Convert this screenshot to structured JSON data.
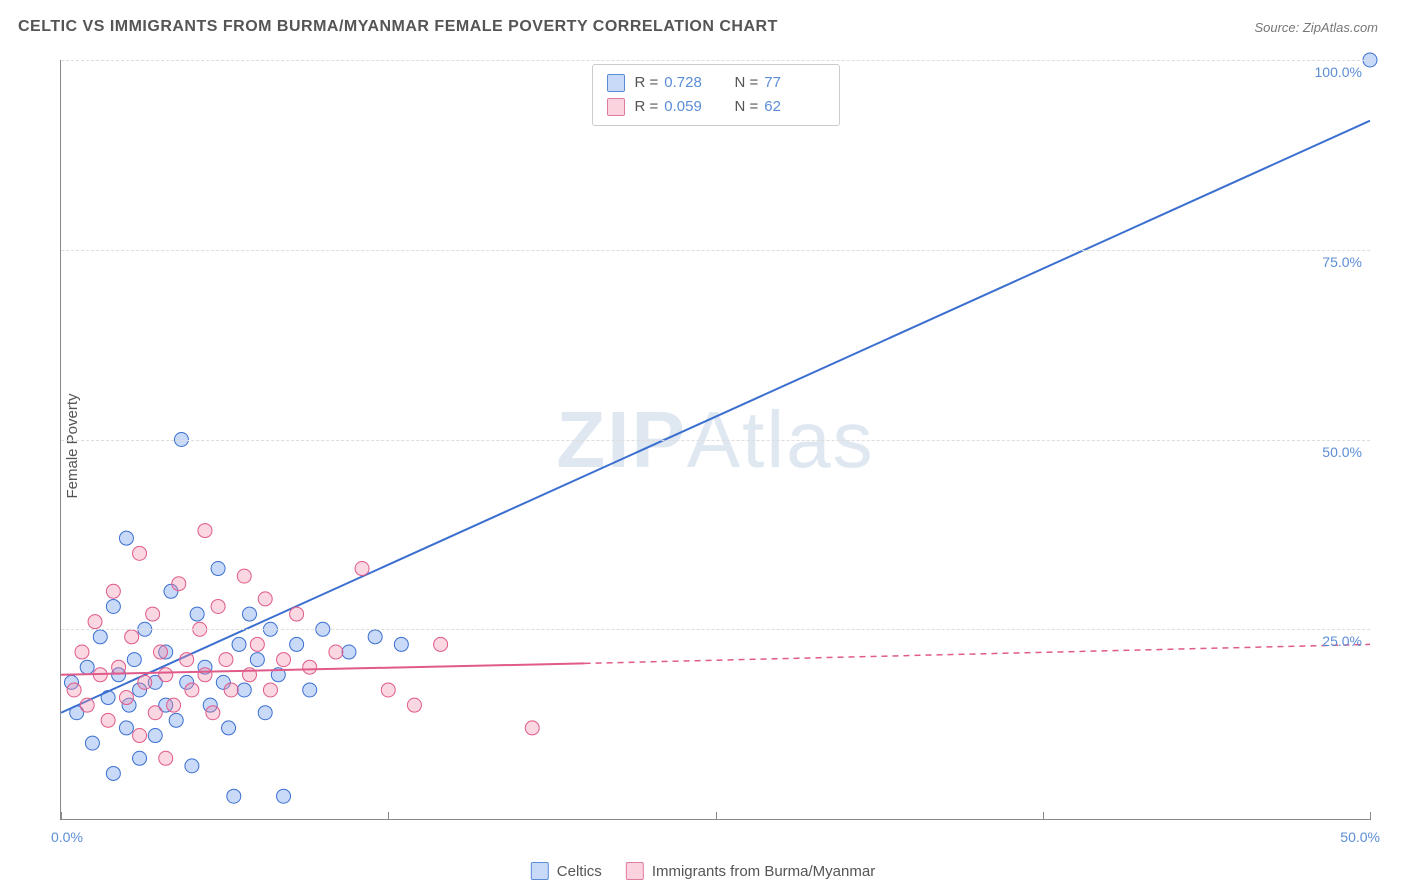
{
  "title": "CELTIC VS IMMIGRANTS FROM BURMA/MYANMAR FEMALE POVERTY CORRELATION CHART",
  "source_label": "Source: ZipAtlas.com",
  "ylabel": "Female Poverty",
  "watermark": {
    "zip": "ZIP",
    "atlas": "Atlas"
  },
  "chart": {
    "type": "scatter",
    "xlim": [
      0,
      50
    ],
    "ylim": [
      0,
      100
    ],
    "yticks": [
      25,
      50,
      75,
      100
    ],
    "ytick_labels": [
      "25.0%",
      "50.0%",
      "75.0%",
      "100.0%"
    ],
    "xticks_major": [
      0,
      25,
      50
    ],
    "xticks_minor": [
      12.5,
      37.5
    ],
    "xtick_labels": {
      "left": "0.0%",
      "right": "50.0%"
    },
    "grid_color": "#dddddd",
    "axis_color": "#888888",
    "background_color": "#ffffff",
    "marker_radius": 7,
    "marker_fill_opacity": 0.35,
    "line_width": 2,
    "series": [
      {
        "name": "Celtics",
        "color_stroke": "#3b6fd0",
        "color_fill": "#6495ed",
        "R": "0.728",
        "N": "77",
        "trend": {
          "x1": 0,
          "y1": 14,
          "x2": 50,
          "y2": 92,
          "dashed": false
        },
        "points": [
          [
            0.4,
            18
          ],
          [
            0.6,
            14
          ],
          [
            1.0,
            20
          ],
          [
            1.2,
            10
          ],
          [
            1.5,
            24
          ],
          [
            1.8,
            16
          ],
          [
            2.0,
            6
          ],
          [
            2.0,
            28
          ],
          [
            2.2,
            19
          ],
          [
            2.5,
            12
          ],
          [
            2.5,
            37
          ],
          [
            2.6,
            15
          ],
          [
            2.8,
            21
          ],
          [
            3.0,
            17
          ],
          [
            3.0,
            8
          ],
          [
            3.2,
            25
          ],
          [
            3.6,
            18
          ],
          [
            3.6,
            11
          ],
          [
            4.0,
            22
          ],
          [
            4.0,
            15
          ],
          [
            4.2,
            30
          ],
          [
            4.4,
            13
          ],
          [
            4.6,
            50
          ],
          [
            4.8,
            18
          ],
          [
            5.0,
            7
          ],
          [
            5.2,
            27
          ],
          [
            5.5,
            20
          ],
          [
            5.7,
            15
          ],
          [
            6.0,
            33
          ],
          [
            6.2,
            18
          ],
          [
            6.4,
            12
          ],
          [
            6.6,
            3
          ],
          [
            6.8,
            23
          ],
          [
            7.0,
            17
          ],
          [
            7.2,
            27
          ],
          [
            7.5,
            21
          ],
          [
            7.8,
            14
          ],
          [
            8.0,
            25
          ],
          [
            8.3,
            19
          ],
          [
            8.5,
            3
          ],
          [
            9.0,
            23
          ],
          [
            9.5,
            17
          ],
          [
            10.0,
            25
          ],
          [
            11.0,
            22
          ],
          [
            12.0,
            24
          ],
          [
            13.0,
            23
          ],
          [
            50.0,
            100
          ]
        ]
      },
      {
        "name": "Immigrants from Burma/Myanmar",
        "color_stroke": "#e05a8a",
        "color_fill": "#f08ca8",
        "R": "0.059",
        "N": "62",
        "trend": {
          "x1": 0,
          "y1": 19,
          "x2": 20,
          "y2": 20.5,
          "dashed": false
        },
        "trend_ext": {
          "x1": 20,
          "y1": 20.5,
          "x2": 50,
          "y2": 23,
          "dashed": true
        },
        "points": [
          [
            0.5,
            17
          ],
          [
            0.8,
            22
          ],
          [
            1.0,
            15
          ],
          [
            1.3,
            26
          ],
          [
            1.5,
            19
          ],
          [
            1.8,
            13
          ],
          [
            2.0,
            30
          ],
          [
            2.2,
            20
          ],
          [
            2.5,
            16
          ],
          [
            2.7,
            24
          ],
          [
            3.0,
            11
          ],
          [
            3.0,
            35
          ],
          [
            3.2,
            18
          ],
          [
            3.5,
            27
          ],
          [
            3.6,
            14
          ],
          [
            3.8,
            22
          ],
          [
            4.0,
            19
          ],
          [
            4.0,
            8
          ],
          [
            4.3,
            15
          ],
          [
            4.5,
            31
          ],
          [
            4.8,
            21
          ],
          [
            5.0,
            17
          ],
          [
            5.3,
            25
          ],
          [
            5.5,
            19
          ],
          [
            5.5,
            38
          ],
          [
            5.8,
            14
          ],
          [
            6.0,
            28
          ],
          [
            6.3,
            21
          ],
          [
            6.5,
            17
          ],
          [
            7.0,
            32
          ],
          [
            7.2,
            19
          ],
          [
            7.5,
            23
          ],
          [
            7.8,
            29
          ],
          [
            8.0,
            17
          ],
          [
            8.5,
            21
          ],
          [
            9.0,
            27
          ],
          [
            9.5,
            20
          ],
          [
            10.5,
            22
          ],
          [
            11.5,
            33
          ],
          [
            12.5,
            17
          ],
          [
            13.5,
            15
          ],
          [
            14.5,
            23
          ],
          [
            18.0,
            12
          ]
        ]
      }
    ]
  },
  "legend_top": {
    "r_label": "R =",
    "n_label": "N ="
  },
  "legend_bottom": {
    "items": [
      "Celtics",
      "Immigrants from Burma/Myanmar"
    ]
  }
}
